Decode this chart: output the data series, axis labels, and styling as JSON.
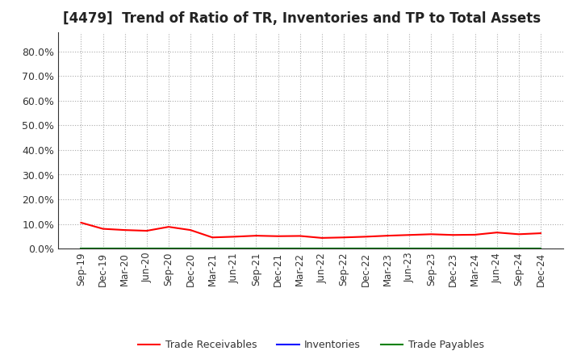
{
  "title": "[4479]  Trend of Ratio of TR, Inventories and TP to Total Assets",
  "x_labels": [
    "Sep-19",
    "Dec-19",
    "Mar-20",
    "Jun-20",
    "Sep-20",
    "Dec-20",
    "Mar-21",
    "Jun-21",
    "Sep-21",
    "Dec-21",
    "Mar-22",
    "Jun-22",
    "Sep-22",
    "Dec-22",
    "Mar-23",
    "Jun-23",
    "Sep-23",
    "Dec-23",
    "Mar-24",
    "Jun-24",
    "Sep-24",
    "Dec-24"
  ],
  "trade_receivables": [
    10.5,
    8.0,
    7.5,
    7.2,
    8.8,
    7.5,
    4.5,
    4.8,
    5.2,
    5.0,
    5.1,
    4.3,
    4.5,
    4.8,
    5.2,
    5.5,
    5.8,
    5.5,
    5.6,
    6.5,
    5.8,
    6.2
  ],
  "inventories": [
    0.0,
    0.0,
    0.0,
    0.0,
    0.0,
    0.0,
    0.0,
    0.0,
    0.0,
    0.0,
    0.0,
    0.0,
    0.0,
    0.0,
    0.0,
    0.0,
    0.0,
    0.0,
    0.0,
    0.0,
    0.0,
    0.0
  ],
  "trade_payables": [
    0.0,
    0.0,
    0.0,
    0.0,
    0.0,
    0.0,
    0.0,
    0.0,
    0.0,
    0.0,
    0.0,
    0.0,
    0.0,
    0.0,
    0.0,
    0.0,
    0.0,
    0.0,
    0.0,
    0.0,
    0.0,
    0.0
  ],
  "tr_color": "#FF0000",
  "inv_color": "#0000FF",
  "tp_color": "#008000",
  "ylim": [
    0,
    88
  ],
  "yticks": [
    0,
    10,
    20,
    30,
    40,
    50,
    60,
    70,
    80
  ],
  "ytick_labels": [
    "0.0%",
    "10.0%",
    "20.0%",
    "30.0%",
    "40.0%",
    "50.0%",
    "60.0%",
    "70.0%",
    "80.0%"
  ],
  "bg_color": "#FFFFFF",
  "plot_bg_color": "#FFFFFF",
  "grid_color": "#AAAAAA",
  "legend_labels": [
    "Trade Receivables",
    "Inventories",
    "Trade Payables"
  ],
  "title_fontsize": 12,
  "tick_fontsize": 8.5,
  "ytick_fontsize": 9
}
